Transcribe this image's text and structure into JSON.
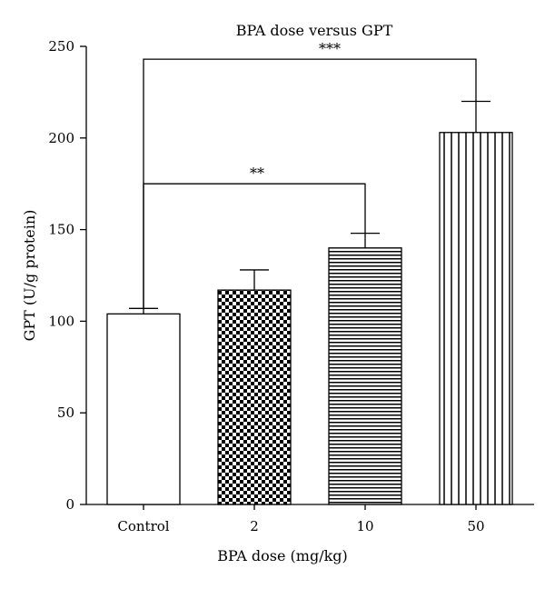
{
  "chart_data": {
    "type": "bar",
    "title": "BPA dose versus GPT",
    "xlabel": "BPA dose (mg/kg)",
    "ylabel": "GPT (U/g protein)",
    "categories": [
      "Control",
      "2",
      "10",
      "50"
    ],
    "values": [
      104,
      117,
      140,
      203
    ],
    "errors": [
      3,
      11,
      8,
      17
    ],
    "patterns": [
      "none",
      "checkerboard",
      "horizontal-lines",
      "vertical-lines"
    ],
    "ylim": [
      0,
      250
    ],
    "yticks": [
      0,
      50,
      100,
      150,
      200,
      250
    ],
    "ytick_labels": [
      "0",
      "50",
      "100",
      "150",
      "200",
      "250"
    ],
    "grid": false,
    "significance": [
      {
        "from": 0,
        "to": 2,
        "y": 175,
        "label": "**"
      },
      {
        "from": 0,
        "to": 3,
        "y": 243,
        "label": "***"
      }
    ]
  }
}
